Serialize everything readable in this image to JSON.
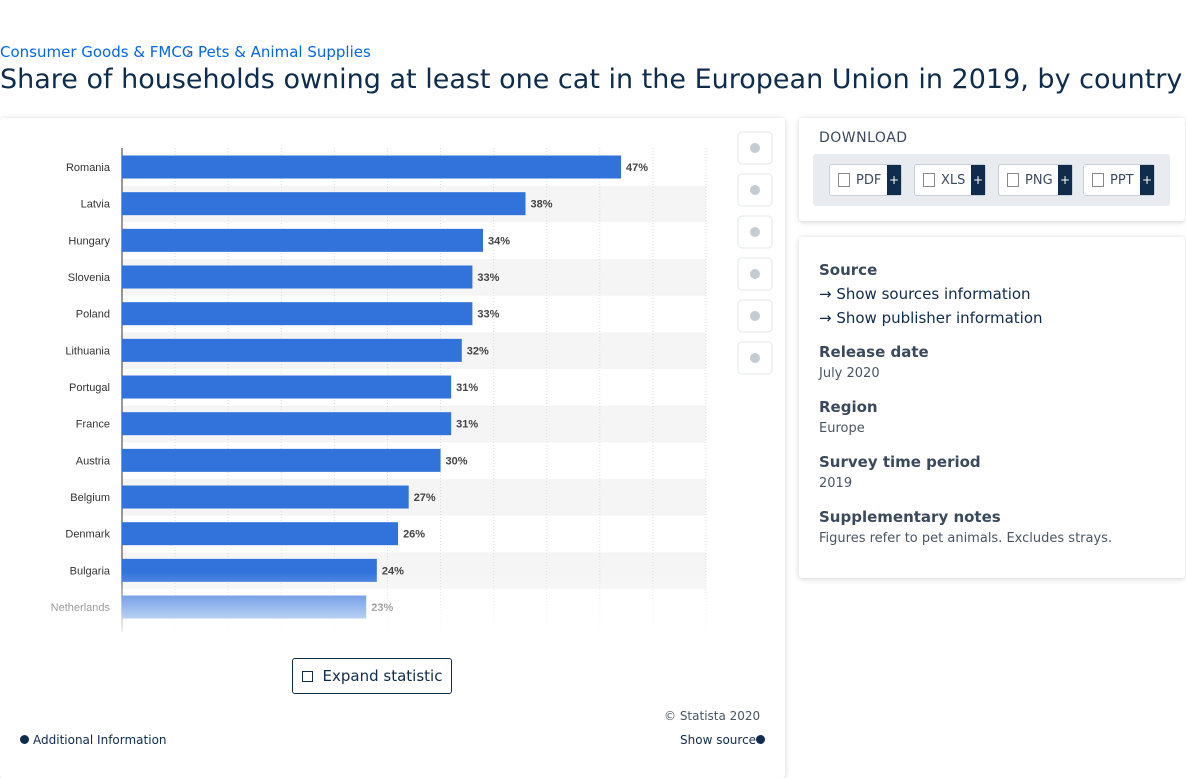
{
  "breadcrumbs": [
    "Consumer Goods & FMCG",
    "Pets & Animal Supplies"
  ],
  "header": {
    "title": "Share of households owning at least one cat in the European Union in 2019, by country"
  },
  "chart_data": {
    "type": "bar",
    "orientation": "horizontal",
    "color": "#3172db",
    "categories": [
      "Romania",
      "Latvia",
      "Hungary",
      "Slovenia",
      "Poland",
      "Lithuania",
      "Portugal",
      "France",
      "Austria",
      "Belgium",
      "Denmark",
      "Bulgaria",
      "Netherlands"
    ],
    "values": [
      47,
      38,
      34,
      33,
      33,
      32,
      31,
      31,
      30,
      27,
      26,
      24,
      23
    ],
    "value_labels": [
      "47%",
      "38%",
      "34%",
      "33%",
      "33%",
      "32%",
      "31%",
      "31%",
      "30%",
      "27%",
      "26%",
      "24%",
      "23%"
    ],
    "xlim": [
      0,
      55
    ],
    "xticks": [
      0,
      5,
      10,
      15,
      20,
      25,
      30,
      35,
      40,
      45,
      50,
      55
    ],
    "grid": true
  },
  "chart_footer": {
    "expand": "Expand statistic",
    "copyright": "© Statista 2020",
    "additional": "Additional Information",
    "show_source": "Show source"
  },
  "download": {
    "title": "DOWNLOAD",
    "formats": [
      "PDF",
      "XLS",
      "PNG",
      "PPT"
    ],
    "plus": "+"
  },
  "details": {
    "source_heading": "Source",
    "links": [
      "Show sources information",
      "Show publisher information"
    ],
    "items": [
      {
        "label": "Release date",
        "value": "July 2020"
      },
      {
        "label": "Region",
        "value": "Europe"
      },
      {
        "label": "Survey time period",
        "value": "2019"
      },
      {
        "label": "Supplementary notes",
        "value": "Figures refer to pet animals. Excludes strays."
      }
    ]
  }
}
